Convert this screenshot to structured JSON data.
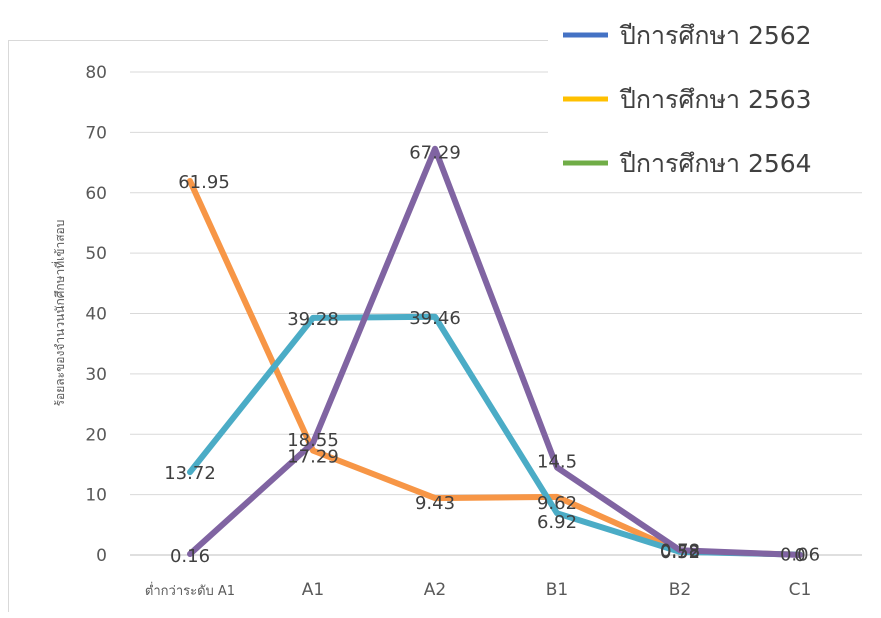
{
  "chart_data": {
    "type": "line",
    "title": "",
    "xlabel": "",
    "ylabel": "ร้อยละของจำนวนนักศึกษาที่เข้าสอบ",
    "ylim": [
      0,
      80
    ],
    "yticks": [
      0,
      10,
      20,
      30,
      40,
      50,
      60,
      70,
      80
    ],
    "grid": true,
    "legend_position": "top-right",
    "categories": [
      "ต่ำกว่าระดับ A1",
      "A1",
      "A2",
      "B1",
      "B2",
      "C1"
    ],
    "legend": [
      {
        "name": "ปีการศึกษา 2562",
        "color": "#4472c4"
      },
      {
        "name": "ปีการศึกษา 2563",
        "color": "#ffc000"
      },
      {
        "name": "ปีการศึกษา 2564",
        "color": "#70ad47"
      }
    ],
    "series": [
      {
        "values": [
          61.95,
          17.29,
          9.43,
          9.62,
          0.58,
          0.06
        ],
        "color": "#f79646"
      },
      {
        "values": [
          13.72,
          39.28,
          39.46,
          6.92,
          0.52,
          0.06
        ],
        "color": "#4bacc6"
      },
      {
        "values": [
          0.16,
          18.55,
          67.29,
          14.5,
          0.78,
          0
        ],
        "color": "#8064a2"
      }
    ],
    "data_labels": [
      {
        "text": "61.95",
        "category": 0,
        "value": 61.95
      },
      {
        "text": "13.72",
        "category": 0,
        "value": 13.72
      },
      {
        "text": "0.16",
        "category": 0,
        "value": 0.16
      },
      {
        "text": "39.28",
        "category": 1,
        "value": 39.28
      },
      {
        "text": "18.55",
        "category": 1,
        "value": 18.55
      },
      {
        "text": "17.29",
        "category": 1,
        "value": 17.29
      },
      {
        "text": "67.29",
        "category": 2,
        "value": 67.29
      },
      {
        "text": "39.46",
        "category": 2,
        "value": 39.46
      },
      {
        "text": "9.43",
        "category": 2,
        "value": 9.43
      },
      {
        "text": "14.5",
        "category": 3,
        "value": 14.5
      },
      {
        "text": "9.62",
        "category": 3,
        "value": 9.62
      },
      {
        "text": "6.92",
        "category": 3,
        "value": 6.92
      },
      {
        "text": "0.78",
        "category": 4,
        "value": 0.78
      },
      {
        "text": "0.58",
        "category": 4,
        "value": 0.58
      },
      {
        "text": "0.52",
        "category": 4,
        "value": 0.52
      },
      {
        "text": "0.06",
        "category": 5,
        "value": 0.06
      },
      {
        "text": "0",
        "category": 5,
        "value": 0
      }
    ]
  }
}
